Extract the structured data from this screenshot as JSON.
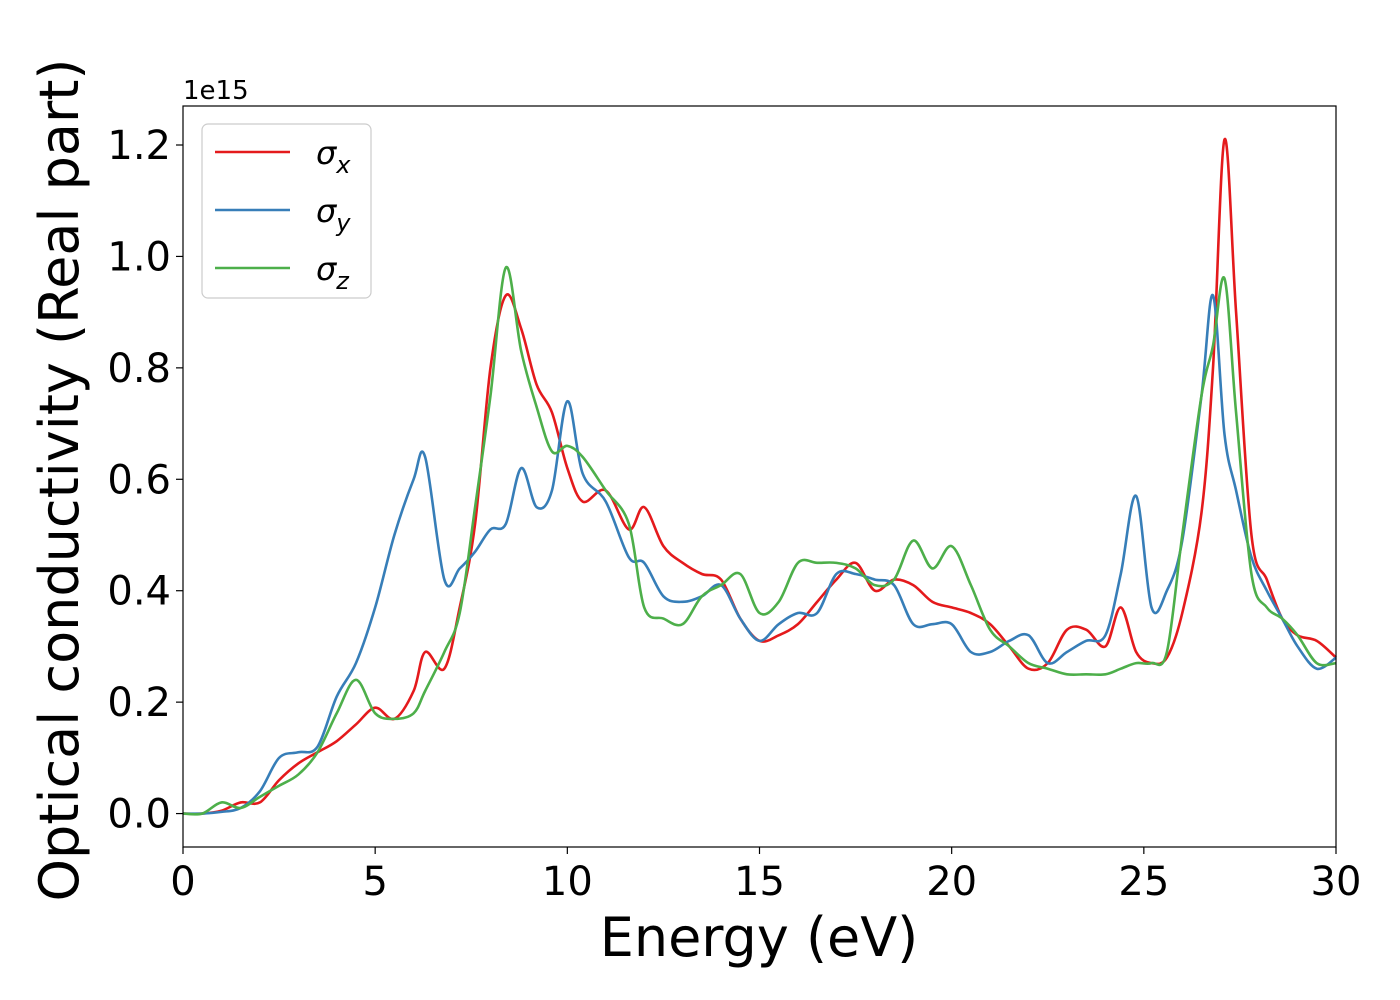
{
  "chart_data": {
    "type": "line",
    "title": "",
    "xlabel": "Energy (eV)",
    "ylabel": "Optical conductivity (Real part)",
    "y_offset_text": "1e15",
    "y_scale": 1000000000000000.0,
    "xlim": [
      0,
      30
    ],
    "ylim": [
      -0.06,
      1.27
    ],
    "x_ticks": [
      0,
      5,
      10,
      15,
      20,
      25,
      30
    ],
    "y_ticks": [
      0.0,
      0.2,
      0.4,
      0.6,
      0.8,
      1.0,
      1.2
    ],
    "x_tick_labels": [
      "0",
      "5",
      "10",
      "15",
      "20",
      "25",
      "30"
    ],
    "y_tick_labels": [
      "0.0",
      "0.2",
      "0.4",
      "0.6",
      "0.8",
      "1.0",
      "1.2"
    ],
    "grid": false,
    "legend_position": "top-left",
    "series": [
      {
        "name": "σx",
        "symbol": "σ",
        "subscript": "x",
        "color": "#e41a1c",
        "x": [
          0,
          0.5,
          1,
          1.5,
          2,
          2.5,
          3,
          3.5,
          4,
          4.5,
          5,
          5.5,
          6,
          6.3,
          6.8,
          7.2,
          7.6,
          8,
          8.4,
          8.8,
          9.2,
          9.6,
          10,
          10.4,
          11,
          11.6,
          12,
          12.5,
          13,
          13.5,
          14,
          14.5,
          15,
          15.5,
          16,
          16.5,
          17,
          17.5,
          18,
          18.5,
          19,
          19.5,
          20,
          20.5,
          21,
          21.5,
          22,
          22.5,
          23,
          23.5,
          24,
          24.4,
          24.8,
          25.2,
          25.6,
          26,
          26.5,
          26.8,
          27.1,
          27.4,
          27.8,
          28.2,
          28.6,
          29,
          29.5,
          30
        ],
        "y": [
          0,
          0,
          0.005,
          0.02,
          0.02,
          0.06,
          0.09,
          0.11,
          0.13,
          0.16,
          0.19,
          0.17,
          0.22,
          0.29,
          0.26,
          0.37,
          0.52,
          0.8,
          0.93,
          0.87,
          0.77,
          0.72,
          0.62,
          0.56,
          0.58,
          0.51,
          0.55,
          0.48,
          0.45,
          0.43,
          0.42,
          0.35,
          0.31,
          0.32,
          0.34,
          0.38,
          0.42,
          0.45,
          0.4,
          0.42,
          0.41,
          0.38,
          0.37,
          0.36,
          0.34,
          0.3,
          0.26,
          0.27,
          0.33,
          0.33,
          0.3,
          0.37,
          0.29,
          0.27,
          0.28,
          0.36,
          0.54,
          0.8,
          1.21,
          0.9,
          0.5,
          0.42,
          0.35,
          0.32,
          0.31,
          0.28
        ]
      },
      {
        "name": "σy",
        "symbol": "σ",
        "subscript": "y",
        "color": "#377eb8",
        "x": [
          0,
          0.5,
          1,
          1.5,
          2,
          2.5,
          3,
          3.5,
          4,
          4.5,
          5,
          5.5,
          6,
          6.3,
          6.8,
          7.2,
          7.6,
          8,
          8.4,
          8.8,
          9.2,
          9.6,
          10,
          10.4,
          11,
          11.6,
          12,
          12.5,
          13,
          13.5,
          14,
          14.5,
          15,
          15.5,
          16,
          16.5,
          17,
          17.5,
          18,
          18.5,
          19,
          19.5,
          20,
          20.5,
          21,
          21.5,
          22,
          22.5,
          23,
          23.5,
          24,
          24.4,
          24.8,
          25.2,
          25.6,
          26,
          26.5,
          26.8,
          27.1,
          27.4,
          27.8,
          28.2,
          28.6,
          29,
          29.5,
          30
        ],
        "y": [
          0,
          0,
          0.003,
          0.01,
          0.04,
          0.1,
          0.11,
          0.12,
          0.21,
          0.27,
          0.37,
          0.5,
          0.6,
          0.64,
          0.42,
          0.44,
          0.47,
          0.51,
          0.52,
          0.62,
          0.55,
          0.58,
          0.74,
          0.61,
          0.56,
          0.46,
          0.45,
          0.39,
          0.38,
          0.39,
          0.41,
          0.35,
          0.31,
          0.34,
          0.36,
          0.36,
          0.43,
          0.43,
          0.42,
          0.41,
          0.34,
          0.34,
          0.34,
          0.29,
          0.29,
          0.31,
          0.32,
          0.27,
          0.29,
          0.31,
          0.32,
          0.43,
          0.57,
          0.37,
          0.4,
          0.49,
          0.75,
          0.93,
          0.68,
          0.58,
          0.46,
          0.4,
          0.35,
          0.3,
          0.26,
          0.28
        ]
      },
      {
        "name": "σz",
        "symbol": "σ",
        "subscript": "z",
        "color": "#4daf4a",
        "x": [
          0,
          0.5,
          1,
          1.5,
          2,
          2.5,
          3,
          3.5,
          4,
          4.5,
          5,
          5.5,
          6,
          6.3,
          6.8,
          7.2,
          7.6,
          8,
          8.4,
          8.8,
          9.2,
          9.6,
          10,
          10.4,
          11,
          11.6,
          12,
          12.5,
          13,
          13.5,
          14,
          14.5,
          15,
          15.5,
          16,
          16.5,
          17,
          17.5,
          18,
          18.5,
          19,
          19.5,
          20,
          20.5,
          21,
          21.5,
          22,
          22.5,
          23,
          23.5,
          24,
          24.4,
          24.8,
          25.2,
          25.6,
          26,
          26.5,
          26.8,
          27.1,
          27.4,
          27.8,
          28.2,
          28.6,
          29,
          29.5,
          30
        ],
        "y": [
          0,
          0,
          0.02,
          0.01,
          0.03,
          0.05,
          0.07,
          0.11,
          0.18,
          0.24,
          0.18,
          0.17,
          0.18,
          0.22,
          0.29,
          0.36,
          0.55,
          0.75,
          0.98,
          0.83,
          0.73,
          0.65,
          0.66,
          0.64,
          0.58,
          0.52,
          0.37,
          0.35,
          0.34,
          0.39,
          0.41,
          0.43,
          0.36,
          0.38,
          0.45,
          0.45,
          0.45,
          0.44,
          0.41,
          0.42,
          0.49,
          0.44,
          0.48,
          0.41,
          0.33,
          0.3,
          0.27,
          0.26,
          0.25,
          0.25,
          0.25,
          0.26,
          0.27,
          0.27,
          0.29,
          0.5,
          0.75,
          0.84,
          0.96,
          0.72,
          0.43,
          0.37,
          0.35,
          0.32,
          0.27,
          0.27
        ]
      }
    ]
  }
}
